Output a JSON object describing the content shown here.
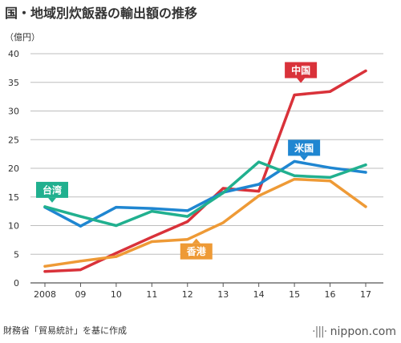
{
  "title": "国・地域別炊飯器の輸出額の推移",
  "unit_label": "（億円）",
  "source": "財務省「貿易統計」を基に作成",
  "brand": {
    "dots": "·|||·",
    "name": "nippon.com"
  },
  "chart_data": {
    "type": "line",
    "title": "国・地域別炊飯器の輸出額の推移",
    "ylabel": "（億円）",
    "xlabel": "",
    "x": [
      "2008",
      "09",
      "10",
      "11",
      "12",
      "13",
      "14",
      "15",
      "16",
      "17"
    ],
    "ylim": [
      0,
      40
    ],
    "yticks": [
      0,
      5,
      10,
      15,
      20,
      25,
      30,
      35,
      40
    ],
    "grid": true,
    "legend": "direct labels",
    "series": [
      {
        "name": "中国",
        "color": "#d9323a",
        "values": [
          2.0,
          2.3,
          5.2,
          8.0,
          10.7,
          16.5,
          16.0,
          32.8,
          33.4,
          37.0
        ]
      },
      {
        "name": "米国",
        "color": "#1f86d1",
        "values": [
          13.2,
          9.9,
          13.2,
          13.0,
          12.6,
          15.8,
          17.2,
          21.2,
          20.1,
          19.3
        ]
      },
      {
        "name": "台湾",
        "color": "#21b08f",
        "values": [
          13.3,
          11.6,
          10.0,
          12.5,
          11.6,
          15.7,
          21.1,
          18.7,
          18.4,
          20.6
        ]
      },
      {
        "name": "香港",
        "color": "#ee9a36",
        "values": [
          2.9,
          3.8,
          4.6,
          7.2,
          7.6,
          10.5,
          15.2,
          18.1,
          17.8,
          13.3
        ]
      }
    ]
  }
}
